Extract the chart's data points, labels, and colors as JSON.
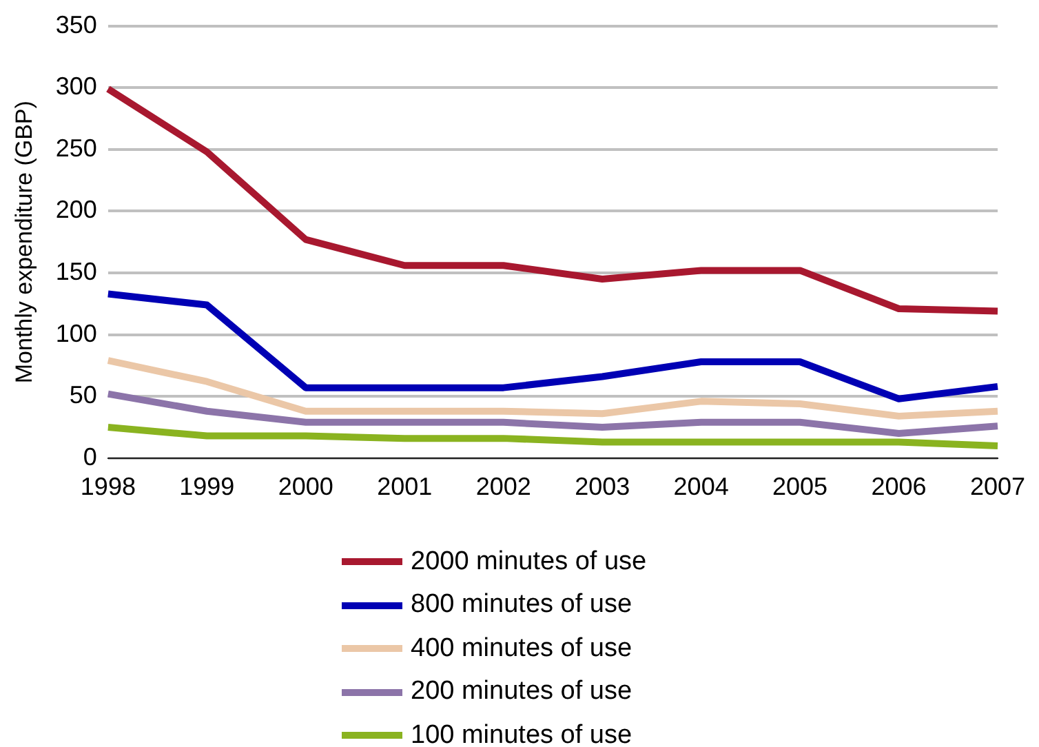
{
  "chart_data": {
    "type": "line",
    "ylabel": "Monthly expenditure (GBP)",
    "categories": [
      "1998",
      "1999",
      "2000",
      "2001",
      "2002",
      "2003",
      "2004",
      "2005",
      "2006",
      "2007"
    ],
    "ylim": [
      0,
      350
    ],
    "yticks": [
      0,
      50,
      100,
      150,
      200,
      250,
      300,
      350
    ],
    "grid": "y",
    "legend": "bottom",
    "marker": "none",
    "series": [
      {
        "name": "2000 minutes of use",
        "color": "#a8182f",
        "values": [
          299,
          248,
          177,
          156,
          156,
          145,
          152,
          152,
          121,
          119
        ]
      },
      {
        "name": "800 minutes of use",
        "color": "#0000b4",
        "values": [
          133,
          124,
          57,
          57,
          57,
          66,
          78,
          78,
          48,
          58
        ]
      },
      {
        "name": "400 minutes of use",
        "color": "#ebc7a7",
        "values": [
          79,
          62,
          38,
          38,
          38,
          36,
          46,
          44,
          34,
          38
        ]
      },
      {
        "name": "200 minutes of use",
        "color": "#8c74a9",
        "values": [
          52,
          38,
          29,
          29,
          29,
          25,
          29,
          29,
          20,
          26
        ]
      },
      {
        "name": "100 minutes of use",
        "color": "#8ab320",
        "values": [
          25,
          18,
          18,
          16,
          16,
          13,
          13,
          13,
          13,
          10
        ]
      }
    ]
  }
}
